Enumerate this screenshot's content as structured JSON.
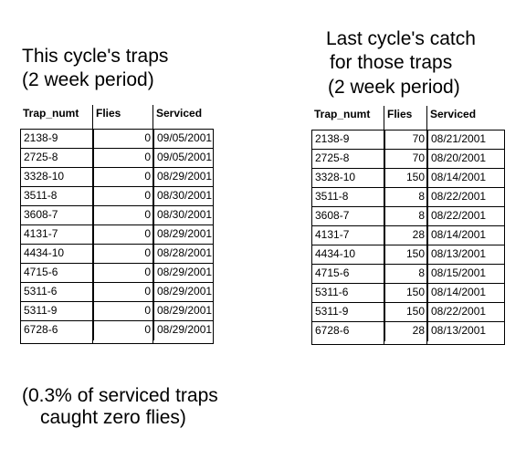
{
  "left_panel": {
    "title_line1": "This cycle's traps",
    "title_line2": "(2 week period)",
    "columns": [
      "Trap_numt",
      "Flies",
      "Serviced"
    ],
    "rows": [
      [
        "2138-9",
        "0",
        "09/05/2001"
      ],
      [
        "2725-8",
        "0",
        "09/05/2001"
      ],
      [
        "3328-10",
        "0",
        "08/29/2001"
      ],
      [
        "3511-8",
        "0",
        "08/30/2001"
      ],
      [
        "3608-7",
        "0",
        "08/30/2001"
      ],
      [
        "4131-7",
        "0",
        "08/29/2001"
      ],
      [
        "4434-10",
        "0",
        "08/28/2001"
      ],
      [
        "4715-6",
        "0",
        "08/29/2001"
      ],
      [
        "5311-6",
        "0",
        "08/29/2001"
      ],
      [
        "5311-9",
        "0",
        "08/29/2001"
      ],
      [
        "6728-6",
        "0",
        "08/29/2001"
      ]
    ]
  },
  "right_panel": {
    "title_line1": "Last cycle's catch",
    "title_line2": "for those traps",
    "title_line3": "(2 week period)",
    "columns": [
      "Trap_numt",
      "Flies",
      "Serviced"
    ],
    "rows": [
      [
        "2138-9",
        "70",
        "08/21/2001"
      ],
      [
        "2725-8",
        "70",
        "08/20/2001"
      ],
      [
        "3328-10",
        "150",
        "08/14/2001"
      ],
      [
        "3511-8",
        "8",
        "08/22/2001"
      ],
      [
        "3608-7",
        "8",
        "08/22/2001"
      ],
      [
        "4131-7",
        "28",
        "08/14/2001"
      ],
      [
        "4434-10",
        "150",
        "08/13/2001"
      ],
      [
        "4715-6",
        "8",
        "08/15/2001"
      ],
      [
        "5311-6",
        "150",
        "08/14/2001"
      ],
      [
        "5311-9",
        "150",
        "08/22/2001"
      ],
      [
        "6728-6",
        "28",
        "08/13/2001"
      ]
    ]
  },
  "footer": {
    "line1": "(0.3% of serviced traps",
    "line2": "caught zero flies)"
  }
}
